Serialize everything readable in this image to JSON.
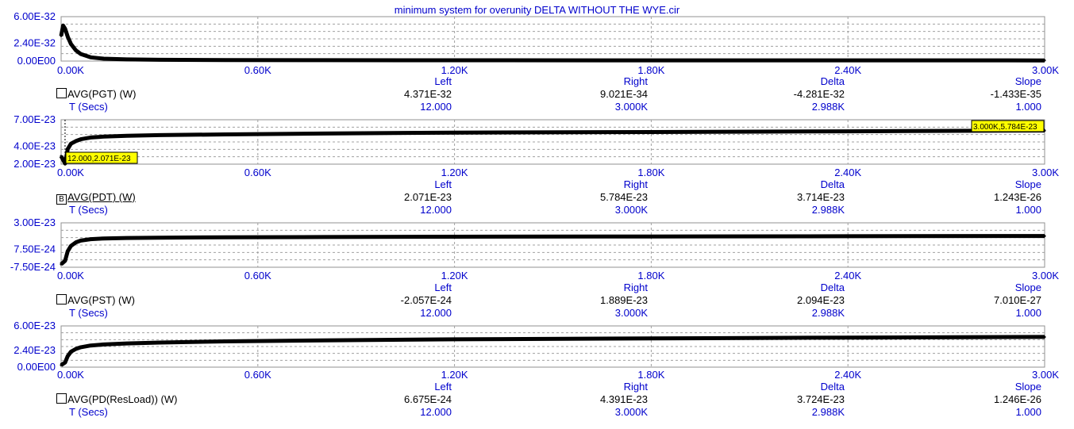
{
  "title": "minimum system for overunity DELTA WITHOUT THE WYE.cir",
  "x_tick_labels": [
    "0.00K",
    "0.60K",
    "1.20K",
    "1.80K",
    "2.40K",
    "3.00K"
  ],
  "col_headers": [
    "Left",
    "Right",
    "Delta",
    "Slope"
  ],
  "colors": {
    "label_blue": "#0000cc",
    "trace": "#000000",
    "cursor_tag_bg": "#ffff00"
  },
  "chart_data": [
    {
      "type": "line",
      "trace_name": "AVG(PGT) (W)",
      "box_mark": "",
      "y_tick_labels": [
        "6.00E-32",
        "2.40E-32",
        "0.00E00"
      ],
      "ylim": [
        0,
        6e-32
      ],
      "xlim": [
        0,
        3000
      ],
      "series": [
        {
          "x": [
            0,
            6,
            12,
            20,
            30,
            45,
            60,
            90,
            130,
            200,
            300,
            500,
            800,
            1200,
            1800,
            2400,
            3000
          ],
          "y": [
            3.4e-32,
            4.8e-32,
            4.371e-32,
            3.3e-32,
            2.3e-32,
            1.45e-32,
            9.5e-33,
            5e-33,
            3.2e-33,
            2.2e-33,
            1.7e-33,
            1.35e-33,
            1.15e-33,
            1.03e-33,
            9.6e-34,
            9.2e-34,
            9.021e-34
          ]
        }
      ],
      "values": [
        "4.371E-32",
        "9.021E-34",
        "-4.281E-32",
        "-1.433E-35"
      ],
      "tsecs": {
        "label": "T (Secs)",
        "values": [
          "12.000",
          "3.000K",
          "2.988K",
          "1.000"
        ]
      }
    },
    {
      "type": "line",
      "trace_name": "AVG(PDT) (W)",
      "box_mark": "B",
      "y_tick_labels": [
        "7.00E-23",
        "4.00E-23",
        "2.00E-23"
      ],
      "ylim": [
        2e-23,
        7e-23
      ],
      "xlim": [
        0,
        3000
      ],
      "series": [
        {
          "x": [
            0,
            12,
            20,
            30,
            45,
            60,
            90,
            130,
            200,
            300,
            500,
            800,
            1200,
            1800,
            2400,
            3000
          ],
          "y": [
            2.9e-23,
            2.071e-23,
            3.7e-23,
            4.3e-23,
            4.6e-23,
            4.8e-23,
            5e-23,
            5.1e-23,
            5.2e-23,
            5.27e-23,
            5.35e-23,
            5.45e-23,
            5.55e-23,
            5.62e-23,
            5.7e-23,
            5.784e-23
          ]
        }
      ],
      "cursor_tags": [
        "12.000,2.071E-23",
        "3.000K,5.784E-23"
      ],
      "values": [
        "2.071E-23",
        "5.784E-23",
        "3.714E-23",
        "1.243E-26"
      ],
      "tsecs": {
        "label": "T (Secs)",
        "values": [
          "12.000",
          "3.000K",
          "2.988K",
          "1.000"
        ]
      }
    },
    {
      "type": "line",
      "trace_name": "AVG(PST) (W)",
      "box_mark": "",
      "y_tick_labels": [
        "3.00E-23",
        "7.50E-24",
        "-7.50E-24"
      ],
      "ylim": [
        -7.5e-24,
        3e-23
      ],
      "xlim": [
        0,
        3000
      ],
      "series": [
        {
          "x": [
            0,
            12,
            20,
            30,
            45,
            60,
            90,
            130,
            200,
            300,
            500,
            800,
            1200,
            1800,
            2400,
            3000
          ],
          "y": [
            -5e-24,
            -2.057e-24,
            6e-24,
            1.05e-23,
            1.35e-23,
            1.5e-23,
            1.62e-23,
            1.68e-23,
            1.72e-23,
            1.75e-23,
            1.78e-23,
            1.8e-23,
            1.83e-23,
            1.85e-23,
            1.87e-23,
            1.889e-23
          ]
        }
      ],
      "values": [
        "-2.057E-24",
        "1.889E-23",
        "2.094E-23",
        "7.010E-27"
      ],
      "tsecs": {
        "label": "T (Secs)",
        "values": [
          "12.000",
          "3.000K",
          "2.988K",
          "1.000"
        ]
      }
    },
    {
      "type": "line",
      "trace_name": "AVG(PD(ResLoad)) (W)",
      "box_mark": "",
      "y_tick_labels": [
        "6.00E-23",
        "2.40E-23",
        "0.00E00"
      ],
      "ylim": [
        0,
        6e-23
      ],
      "xlim": [
        0,
        3000
      ],
      "series": [
        {
          "x": [
            0,
            12,
            20,
            30,
            45,
            60,
            90,
            130,
            200,
            300,
            500,
            800,
            1200,
            1800,
            2400,
            3000
          ],
          "y": [
            3e-24,
            6.675e-24,
            1.6e-23,
            2.25e-23,
            2.65e-23,
            2.9e-23,
            3.15e-23,
            3.3e-23,
            3.45e-23,
            3.58e-23,
            3.75e-23,
            3.9e-23,
            4.05e-23,
            4.18e-23,
            4.3e-23,
            4.391e-23
          ]
        }
      ],
      "values": [
        "6.675E-24",
        "4.391E-23",
        "3.724E-23",
        "1.246E-26"
      ],
      "tsecs": {
        "label": "T (Secs)",
        "values": [
          "12.000",
          "3.000K",
          "2.988K",
          "1.000"
        ]
      }
    }
  ]
}
